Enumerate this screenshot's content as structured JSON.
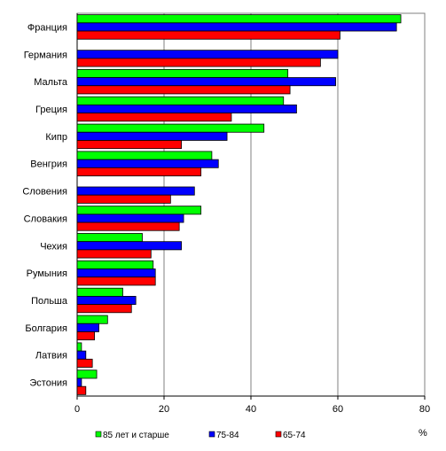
{
  "chart_data": {
    "type": "bar",
    "orientation": "horizontal",
    "categories": [
      "Франция",
      "Германия",
      "Мальта",
      "Греция",
      "Кипр",
      "Венгрия",
      "Словения",
      "Словакия",
      "Чехия",
      "Румыния",
      "Польша",
      "Болгария",
      "Латвия",
      "Эстония"
    ],
    "series": [
      {
        "name": "85 лет и старше",
        "color": "#00ff00",
        "values": [
          74.5,
          null,
          48.5,
          47.5,
          43,
          31,
          null,
          28.5,
          15,
          17.5,
          10.5,
          7,
          1,
          4.5
        ]
      },
      {
        "name": "75-84",
        "color": "#0000ff",
        "values": [
          73.5,
          60,
          59.5,
          50.5,
          34.5,
          32.5,
          27,
          24.5,
          24,
          18,
          13.5,
          5,
          2,
          1
        ]
      },
      {
        "name": "65-74",
        "color": "#ff0000",
        "values": [
          60.5,
          56,
          49,
          35.5,
          24,
          28.5,
          21.5,
          23.5,
          17,
          18,
          12.5,
          4,
          3.5,
          2
        ]
      }
    ],
    "xlim": [
      0,
      80
    ],
    "xticks": [
      0,
      20,
      40,
      60,
      80
    ],
    "xlabel": "%",
    "grid": "vertical",
    "legend_position": "bottom"
  }
}
